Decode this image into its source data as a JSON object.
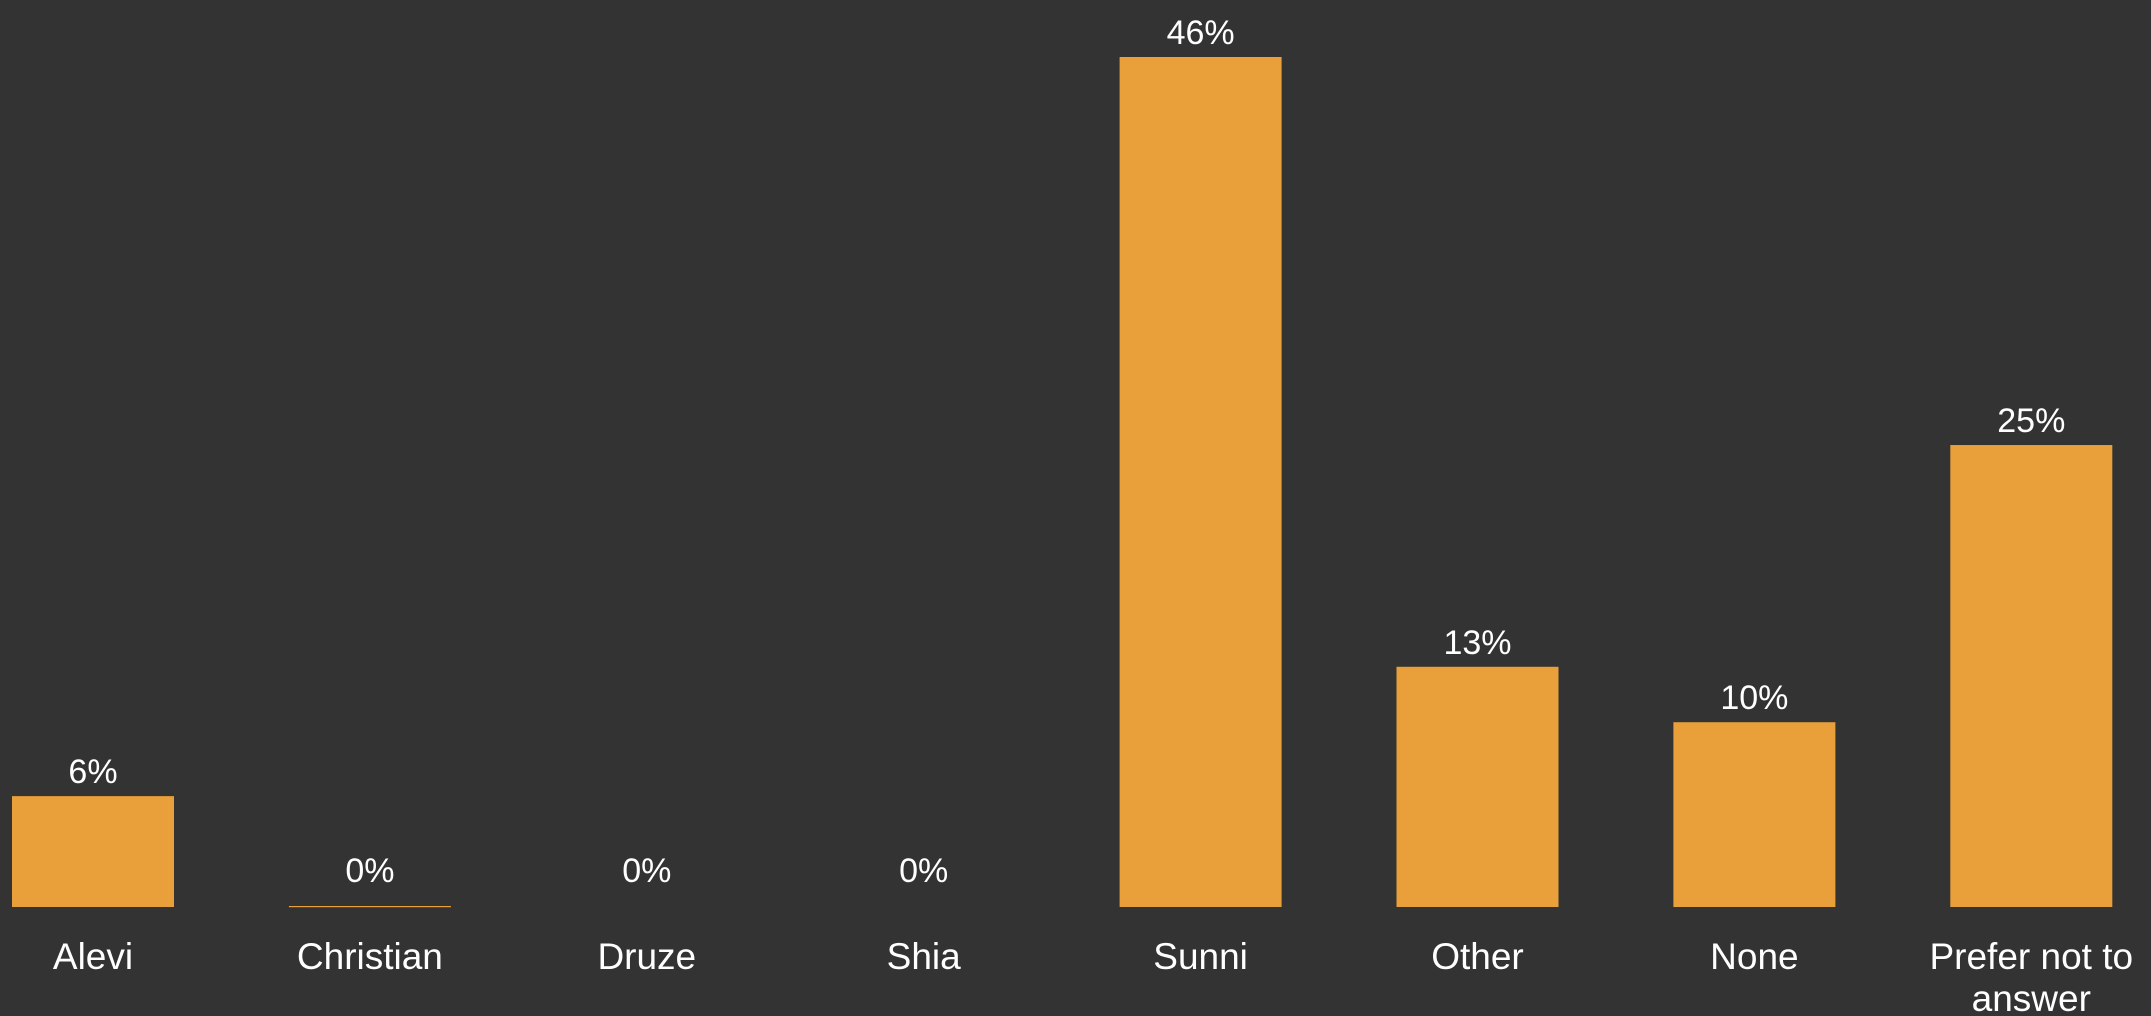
{
  "chart_data": {
    "type": "bar",
    "categories": [
      "Alevi",
      "Christian",
      "Druze",
      "Shia",
      "Sunni",
      "Other",
      "None",
      "Prefer not to answer"
    ],
    "values": [
      6,
      0,
      0,
      0,
      46,
      13,
      10,
      25
    ],
    "value_labels": [
      "6%",
      "0%",
      "0%",
      "0%",
      "46%",
      "13%",
      "10%",
      "25%"
    ],
    "title": "",
    "xlabel": "",
    "ylabel": "",
    "ylim": [
      0,
      46
    ],
    "grid": false,
    "legend": "none",
    "colors": {
      "background": "#333333",
      "bar": "#E9A03B",
      "text": "#FFFFFF"
    }
  }
}
